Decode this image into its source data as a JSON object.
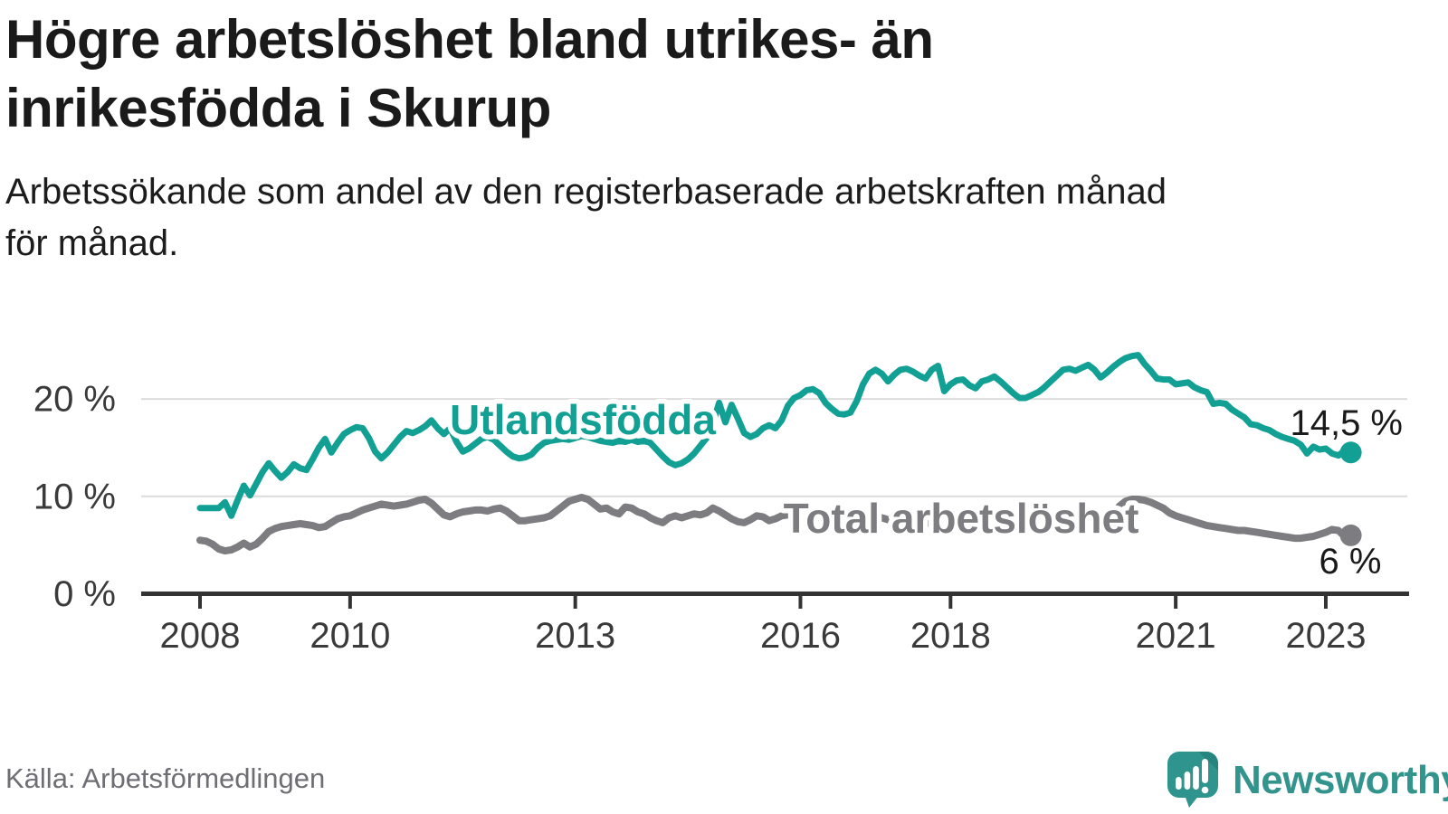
{
  "header": {
    "title": "Högre arbetslöshet bland utrikes- än inrikesfödda i Skurup",
    "title_lines": [
      "Högre arbetslöshet bland utrikes- än",
      "inrikesfödda i Skurup"
    ],
    "subtitle": "Arbetssökande som andel av den registerbaserade arbetskraften månad för månad.",
    "subtitle_lines": [
      "Arbetssökande som andel av den registerbaserade arbetskraften månad",
      "för månad."
    ]
  },
  "footer": {
    "source": "Källa: Arbetsförmedlingen",
    "brand": {
      "name": "Newsworthy",
      "logo_icon": "newsworthy-speech-bubble-bar-chart-icon"
    }
  },
  "colors": {
    "title_text": "#1A1A1A",
    "axis_text": "#3A3A3A",
    "axis_line": "#333333",
    "grid": "#DBDBDB",
    "source_text": "#6E6E74",
    "brand_teal": "#33948E",
    "brand_teal_dark": "#26847E",
    "series_foreign_born": "#12A095",
    "series_total": "#7C7C81",
    "label_halo": "#FFFFFF"
  },
  "chart_data": {
    "type": "line",
    "title": "Högre arbetslöshet bland utrikes- än inrikesfödda i Skurup",
    "subtitle": "Arbetssökande som andel av den registerbaserade arbetskraften månad för månad.",
    "unit": "%",
    "frequency": "monthly",
    "x_start": "2008-01",
    "x_end": "2023-05",
    "ylim": [
      0,
      26
    ],
    "grid": "horizontal",
    "legend": "inline-series-labels",
    "yaxis": {
      "tick_values": [
        0,
        10,
        20
      ],
      "tick_labels": [
        "0 %",
        "10 %",
        "20 %"
      ]
    },
    "xaxis": {
      "ticks": [
        {
          "label": "2008",
          "year": 2008
        },
        {
          "label": "2010",
          "year": 2010
        },
        {
          "label": "2013",
          "year": 2013
        },
        {
          "label": "2016",
          "year": 2016
        },
        {
          "label": "2018",
          "year": 2018
        },
        {
          "label": "2021",
          "year": 2021
        },
        {
          "label": "2023",
          "year": 2023
        }
      ]
    },
    "series": [
      {
        "id": "utlandsfodda",
        "name": "Utlandsfödda",
        "color": "#12A095",
        "end_value": 14.5,
        "end_label": "14,5 %",
        "start": "2008-01",
        "values": [
          8.8,
          8.8,
          8.8,
          8.8,
          9.4,
          8.0,
          9.6,
          11.1,
          10.1,
          11.3,
          12.5,
          13.4,
          12.6,
          11.9,
          12.5,
          13.3,
          12.9,
          12.7,
          13.8,
          15.0,
          15.9,
          14.5,
          15.5,
          16.4,
          16.8,
          17.1,
          17.0,
          16.0,
          14.6,
          13.9,
          14.5,
          15.3,
          16.1,
          16.7,
          16.5,
          16.8,
          17.2,
          17.8,
          17.0,
          16.4,
          17.0,
          15.6,
          14.6,
          14.9,
          15.4,
          15.9,
          16.1,
          15.8,
          15.2,
          14.6,
          14.1,
          13.9,
          14.0,
          14.3,
          15.0,
          15.5,
          15.7,
          15.8,
          15.9,
          15.8,
          16.0,
          16.2,
          16.1,
          15.9,
          15.7,
          15.6,
          15.5,
          15.7,
          15.6,
          15.8,
          15.6,
          15.7,
          15.5,
          14.8,
          14.1,
          13.5,
          13.2,
          13.4,
          13.8,
          14.4,
          15.2,
          16.0,
          17.5,
          19.6,
          17.6,
          19.4,
          18.0,
          16.5,
          16.1,
          16.4,
          17.0,
          17.3,
          17.0,
          17.8,
          19.3,
          20.1,
          20.4,
          20.9,
          21.0,
          20.6,
          19.6,
          19.0,
          18.5,
          18.4,
          18.6,
          19.8,
          21.5,
          22.6,
          23.0,
          22.6,
          21.8,
          22.5,
          23.0,
          23.1,
          22.8,
          22.4,
          22.1,
          23.0,
          23.4,
          20.8,
          21.5,
          21.9,
          22.0,
          21.4,
          21.1,
          21.8,
          22.0,
          22.3,
          21.8,
          21.2,
          20.6,
          20.1,
          20.1,
          20.4,
          20.7,
          21.2,
          21.8,
          22.4,
          23.0,
          23.1,
          22.9,
          23.2,
          23.5,
          23.0,
          22.2,
          22.7,
          23.3,
          23.8,
          24.2,
          24.4,
          24.5,
          23.6,
          22.9,
          22.1,
          22.0,
          22.0,
          21.5,
          21.6,
          21.7,
          21.2,
          20.9,
          20.7,
          19.5,
          19.6,
          19.5,
          18.9,
          18.5,
          18.1,
          17.4,
          17.3,
          17.0,
          16.8,
          16.4,
          16.1,
          15.9,
          15.7,
          15.3,
          14.4,
          15.1,
          14.8,
          14.9,
          14.4,
          14.2,
          14.7,
          14.5
        ]
      },
      {
        "id": "total-arbetsloshet",
        "name": "Total arbetslöshet",
        "color": "#7C7C81",
        "end_value": 6.0,
        "end_label": "6 %",
        "start": "2008-01",
        "values": [
          5.5,
          5.4,
          5.1,
          4.6,
          4.4,
          4.5,
          4.8,
          5.2,
          4.8,
          5.1,
          5.7,
          6.4,
          6.7,
          6.9,
          7.0,
          7.1,
          7.2,
          7.1,
          7.0,
          6.8,
          6.9,
          7.3,
          7.7,
          7.9,
          8.0,
          8.3,
          8.6,
          8.8,
          9.0,
          9.2,
          9.1,
          9.0,
          9.1,
          9.2,
          9.4,
          9.6,
          9.7,
          9.3,
          8.7,
          8.1,
          7.9,
          8.2,
          8.4,
          8.5,
          8.6,
          8.6,
          8.5,
          8.7,
          8.8,
          8.5,
          8.0,
          7.5,
          7.5,
          7.6,
          7.7,
          7.8,
          8.0,
          8.5,
          9.0,
          9.5,
          9.7,
          9.9,
          9.7,
          9.2,
          8.7,
          8.8,
          8.4,
          8.2,
          8.9,
          8.8,
          8.4,
          8.2,
          7.8,
          7.5,
          7.3,
          7.8,
          8.0,
          7.8,
          8.0,
          8.2,
          8.1,
          8.3,
          8.8,
          8.5,
          8.1,
          7.7,
          7.4,
          7.3,
          7.6,
          8.0,
          7.9,
          7.5,
          7.7,
          8.0,
          8.1,
          8.0,
          8.3,
          8.2,
          8.0,
          7.8,
          7.6,
          7.5,
          7.4,
          7.5,
          7.6,
          7.7,
          7.8,
          7.9,
          7.9,
          7.8,
          7.6,
          7.4,
          7.2,
          7.1,
          7.0,
          7.1,
          7.2,
          7.3,
          7.4,
          7.4,
          7.4,
          7.3,
          7.1,
          6.9,
          6.8,
          6.7,
          6.6,
          6.7,
          6.8,
          6.9,
          7.0,
          7.0,
          7.0,
          6.9,
          6.8,
          6.7,
          6.7,
          6.8,
          6.9,
          7.0,
          7.1,
          7.2,
          7.3,
          7.4,
          7.5,
          7.6,
          8.2,
          9.0,
          9.5,
          9.7,
          9.7,
          9.6,
          9.4,
          9.1,
          8.8,
          8.3,
          8.0,
          7.8,
          7.6,
          7.4,
          7.2,
          7.0,
          6.9,
          6.8,
          6.7,
          6.6,
          6.5,
          6.5,
          6.4,
          6.3,
          6.2,
          6.1,
          6.0,
          5.9,
          5.8,
          5.7,
          5.7,
          5.8,
          5.9,
          6.1,
          6.3,
          6.6,
          6.5,
          5.9,
          6.0
        ]
      }
    ]
  }
}
